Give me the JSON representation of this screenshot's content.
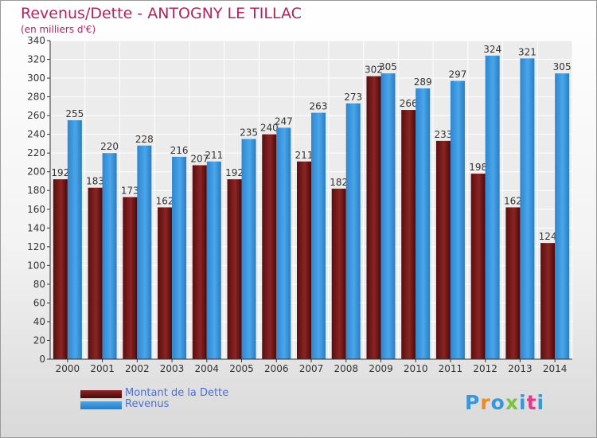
{
  "header": {
    "title": "Revenus/Dette - ANTOGNY LE TILLAC",
    "subtitle": "(en milliers d'€)"
  },
  "chart_data": {
    "type": "bar",
    "categories": [
      "2000",
      "2001",
      "2002",
      "2003",
      "2004",
      "2005",
      "2006",
      "2007",
      "2008",
      "2009",
      "2010",
      "2011",
      "2012",
      "2013",
      "2014"
    ],
    "series": [
      {
        "name": "Montant de la Dette",
        "color": "#7a1a1a",
        "values": [
          192,
          183,
          173,
          162,
          207,
          192,
          240,
          211,
          182,
          302,
          266,
          233,
          198,
          162,
          124
        ]
      },
      {
        "name": "Revenus",
        "color": "#3a96dc",
        "values": [
          255,
          220,
          228,
          216,
          211,
          235,
          247,
          263,
          273,
          305,
          289,
          297,
          324,
          321,
          305
        ]
      }
    ],
    "ylim": [
      0,
      340
    ],
    "yticks": [
      0,
      20,
      40,
      60,
      80,
      100,
      120,
      140,
      160,
      180,
      200,
      220,
      240,
      260,
      280,
      300,
      320,
      340
    ],
    "grid": true,
    "legend_position": "bottom-left"
  },
  "legend": {
    "dette_label": "Montant de la Dette",
    "revenus_label": "Revenus"
  },
  "logo": {
    "text": "Proxiti",
    "colors": [
      "#3a96dc",
      "#f08a24",
      "#3a96dc",
      "#7cc242",
      "#3a96dc",
      "#e2398b",
      "#3a96dc"
    ]
  }
}
